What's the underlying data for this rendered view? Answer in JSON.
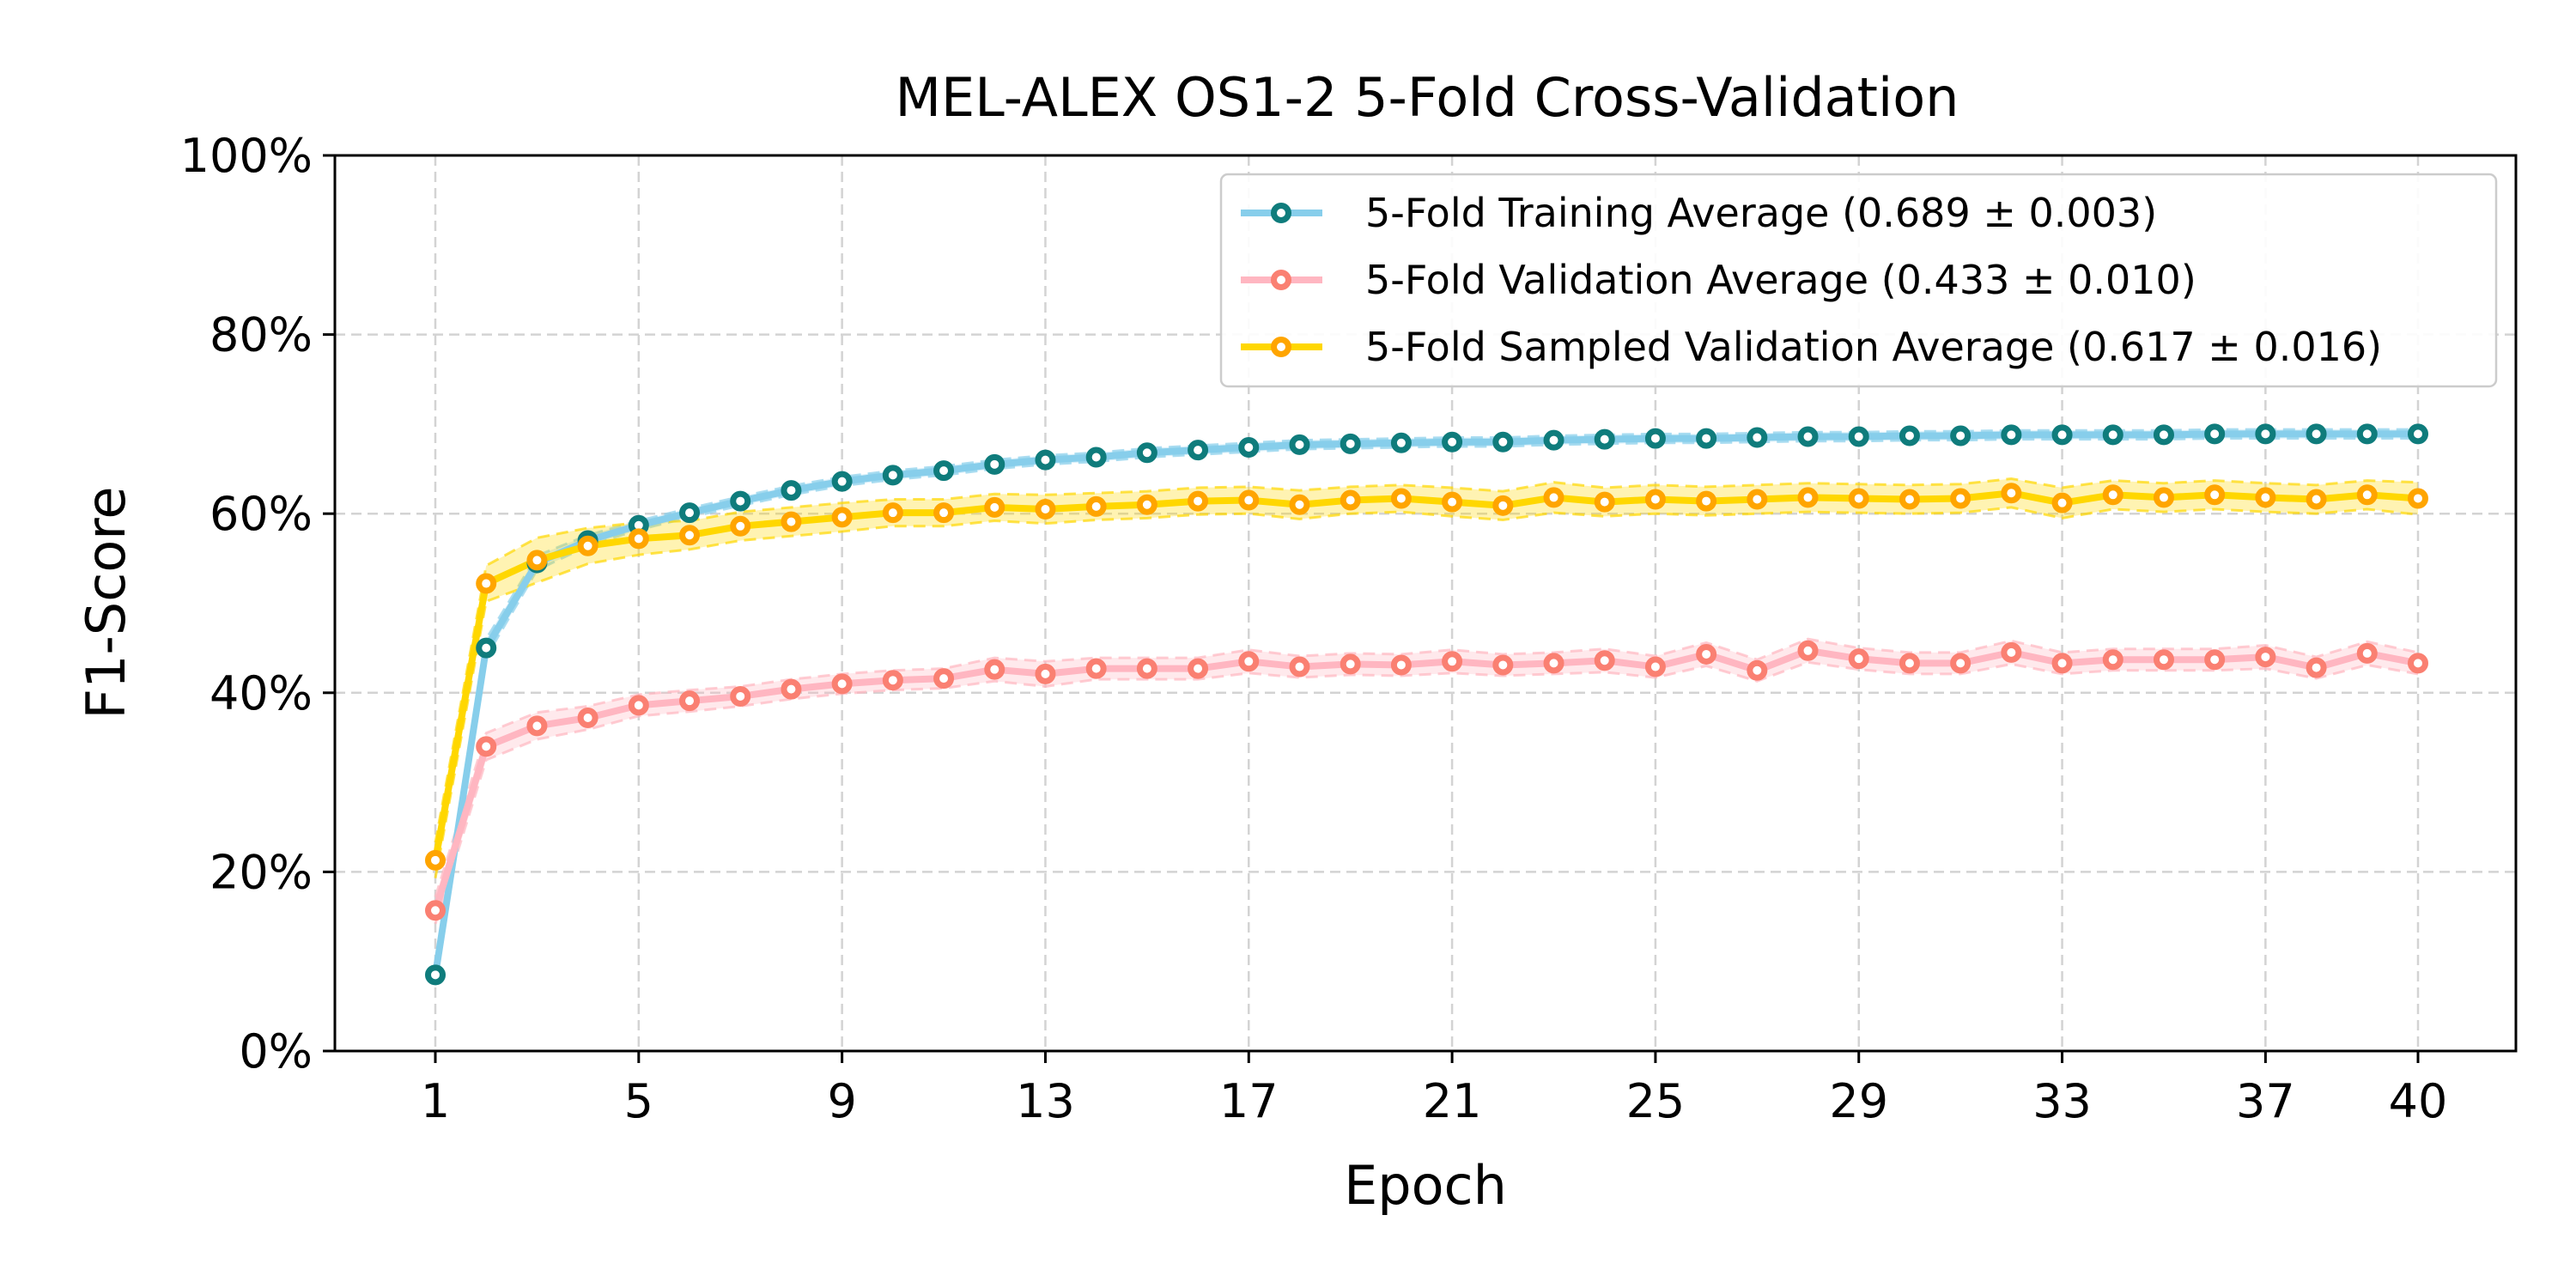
{
  "chart_data": {
    "type": "line",
    "title": "MEL-ALEX OS1-2 5-Fold Cross-Validation",
    "xlabel": "Epoch",
    "ylabel": "F1-Score",
    "xlim": [
      1,
      40
    ],
    "ylim": [
      0,
      100
    ],
    "x_ticks": [
      1,
      5,
      9,
      13,
      17,
      21,
      25,
      29,
      33,
      37,
      40
    ],
    "y_ticks": [
      0,
      20,
      40,
      60,
      80,
      100
    ],
    "y_tick_labels": [
      "0%",
      "20%",
      "40%",
      "60%",
      "80%",
      "100%"
    ],
    "grid": true,
    "legend_position": "top-right",
    "x": [
      1,
      2,
      3,
      4,
      5,
      6,
      7,
      8,
      9,
      10,
      11,
      12,
      13,
      14,
      15,
      16,
      17,
      18,
      19,
      20,
      21,
      22,
      23,
      24,
      25,
      26,
      27,
      28,
      29,
      30,
      31,
      32,
      33,
      34,
      35,
      36,
      37,
      38,
      39,
      40
    ],
    "series": [
      {
        "name": "5-Fold Training Average (0.689 ± 0.003)",
        "line_color": "#87CEEB",
        "marker_color": "#0F7C7C",
        "band_color": "#87CEEB",
        "values": [
          8.5,
          45,
          54.5,
          57,
          58.7,
          60.1,
          61.4,
          62.6,
          63.6,
          64.3,
          64.8,
          65.5,
          66,
          66.3,
          66.8,
          67.1,
          67.4,
          67.7,
          67.8,
          67.9,
          68,
          68,
          68.2,
          68.3,
          68.4,
          68.4,
          68.5,
          68.6,
          68.6,
          68.7,
          68.7,
          68.8,
          68.8,
          68.8,
          68.8,
          68.9,
          68.9,
          68.9,
          68.9,
          68.9
        ],
        "band": [
          0.5,
          1,
          0.8,
          0.6,
          0.5,
          0.5,
          0.5,
          0.5,
          0.5,
          0.5,
          0.5,
          0.5,
          0.5,
          0.5,
          0.5,
          0.5,
          0.5,
          0.5,
          0.5,
          0.5,
          0.5,
          0.5,
          0.5,
          0.5,
          0.5,
          0.5,
          0.5,
          0.5,
          0.5,
          0.5,
          0.5,
          0.5,
          0.5,
          0.5,
          0.5,
          0.5,
          0.5,
          0.5,
          0.5,
          0.5
        ]
      },
      {
        "name": "5-Fold Validation Average (0.433 ± 0.010)",
        "line_color": "#FFB6C1",
        "marker_color": "#FA8072",
        "band_color": "#FFB6C1",
        "values": [
          15.7,
          34,
          36.3,
          37.2,
          38.6,
          39.1,
          39.6,
          40.4,
          41,
          41.4,
          41.6,
          42.6,
          42.1,
          42.7,
          42.7,
          42.7,
          43.5,
          42.9,
          43.2,
          43.1,
          43.5,
          43.1,
          43.3,
          43.6,
          42.9,
          44.3,
          42.5,
          44.7,
          43.8,
          43.3,
          43.3,
          44.5,
          43.3,
          43.7,
          43.7,
          43.7,
          44.0,
          42.8,
          44.4,
          43.3
        ],
        "band": [
          1.5,
          1.5,
          1.5,
          1.3,
          1.2,
          1.2,
          1.1,
          1.1,
          1.1,
          1.1,
          1.1,
          1.3,
          1.4,
          1.2,
          1.2,
          1.2,
          1.3,
          1.2,
          1.2,
          1.2,
          1.3,
          1.2,
          1.2,
          1.3,
          1.2,
          1.3,
          1.2,
          1.3,
          1.2,
          1.2,
          1.2,
          1.3,
          1.2,
          1.2,
          1.2,
          1.2,
          1.3,
          1.2,
          1.3,
          1.2
        ]
      },
      {
        "name": "5-Fold Sampled Validation Average (0.617 ± 0.016)",
        "line_color": "#FFD700",
        "marker_color": "#FFA500",
        "band_color": "#FFD700",
        "values": [
          21.3,
          52.2,
          54.8,
          56.4,
          57.2,
          57.6,
          58.6,
          59.1,
          59.6,
          60.1,
          60.1,
          60.7,
          60.5,
          60.8,
          61,
          61.4,
          61.5,
          61,
          61.5,
          61.7,
          61.3,
          60.9,
          61.8,
          61.3,
          61.6,
          61.4,
          61.6,
          61.8,
          61.7,
          61.6,
          61.7,
          62.3,
          61.2,
          62.1,
          61.8,
          62.1,
          61.8,
          61.6,
          62.1,
          61.7
        ],
        "band": [
          2,
          2,
          2.5,
          2,
          1.8,
          1.6,
          1.6,
          1.6,
          1.6,
          1.5,
          1.5,
          1.5,
          1.6,
          1.5,
          1.5,
          1.5,
          1.5,
          1.6,
          1.5,
          1.5,
          1.6,
          1.6,
          1.7,
          1.6,
          1.6,
          1.6,
          1.6,
          1.6,
          1.6,
          1.6,
          1.6,
          1.6,
          1.7,
          1.6,
          1.6,
          1.6,
          1.6,
          1.6,
          1.6,
          1.8
        ]
      }
    ]
  }
}
